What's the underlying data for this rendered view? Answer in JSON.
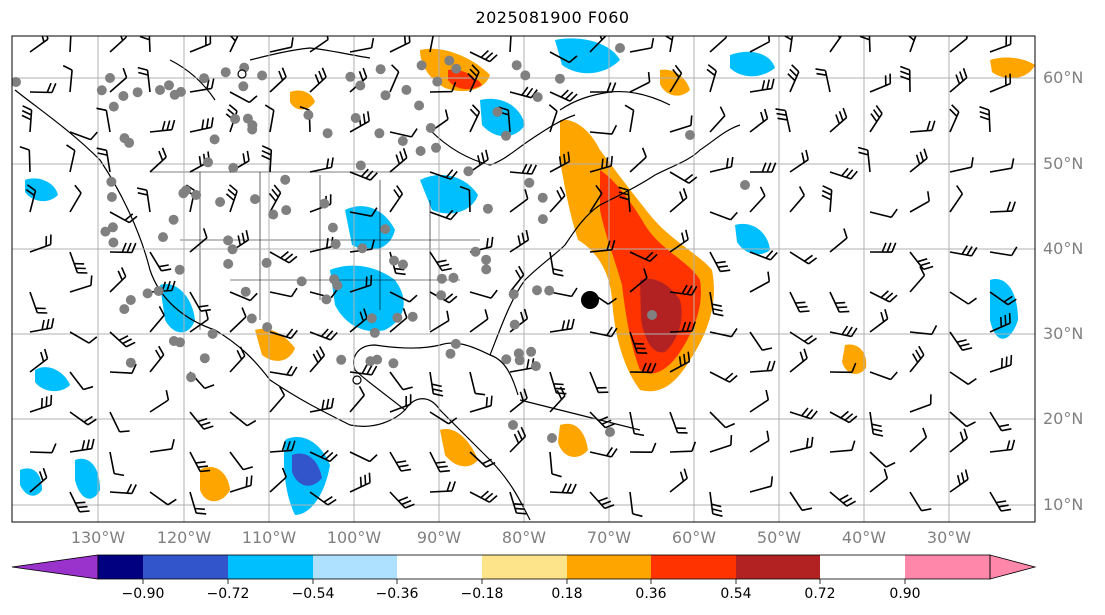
{
  "title": "2025081900 F060",
  "lat_labels": [
    "60°N",
    "50°N",
    "40°N",
    "30°N",
    "20°N",
    "10°N"
  ],
  "lon_labels": [
    "130°W",
    "120°W",
    "110°W",
    "100°W",
    "90°W",
    "80°W",
    "70°W",
    "60°W",
    "50°W",
    "40°W",
    "30°W"
  ],
  "colorbar": {
    "tick_labels": [
      "−0.90",
      "−0.72",
      "−0.54",
      "−0.36",
      "−0.18",
      "0.18",
      "0.36",
      "0.54",
      "0.72",
      "0.90"
    ],
    "colors": [
      "#9933cc",
      "#000080",
      "#3355cc",
      "#00bfff",
      "#aee0ff",
      "#ffffff",
      "#fde38a",
      "#ffa500",
      "#ff3300",
      "#b22222",
      "#ff88aa"
    ]
  },
  "map_colors": {
    "land_line": "#000000",
    "grid": "#b0b0b0",
    "station_marker": "#808080",
    "barb": "#000000"
  }
}
